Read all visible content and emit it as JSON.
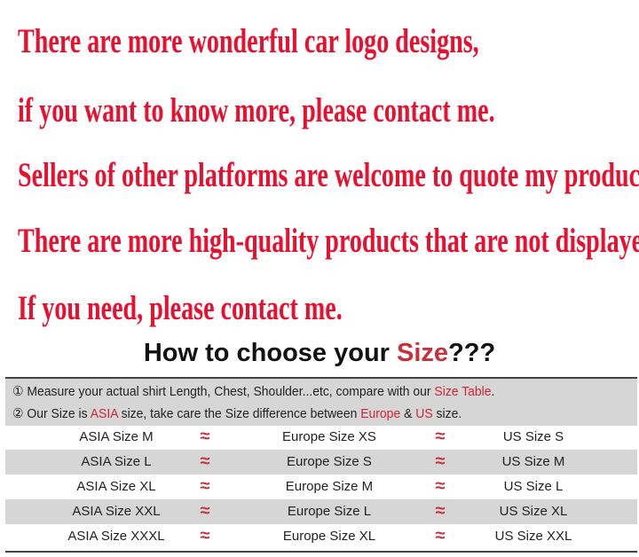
{
  "promo_lines": [
    "There are more wonderful car logo designs,",
    "if you want to know more, please contact me.",
    "Sellers of other platforms are welcome to quote my products.",
    "There are more high-quality products that are not displayed.",
    "If you need, please contact me."
  ],
  "size_guide": {
    "title_prefix": "How to choose your ",
    "title_highlight": "Size",
    "title_suffix": "???",
    "note1": {
      "marker": "①",
      "text": " Measure your actual shirt Length, Chest, Shoulder...etc, compare with our ",
      "highlight": "Size Table",
      "end": "."
    },
    "note2": {
      "marker": "②",
      "t1": " Our Size is ",
      "h1": "ASIA",
      "t2": " size, take care the Size difference between ",
      "h2": "Europe",
      "t3": " & ",
      "h3": "US",
      "t4": " size."
    },
    "approx_symbol": "≈",
    "rows": [
      {
        "asia": "ASIA Size M",
        "europe": "Europe Size XS",
        "us": "US Size S"
      },
      {
        "asia": "ASIA Size L",
        "europe": "Europe Size S",
        "us": "US Size M"
      },
      {
        "asia": "ASIA Size XL",
        "europe": "Europe Size M",
        "us": "US Size L"
      },
      {
        "asia": "ASIA Size XXL",
        "europe": "Europe Size L",
        "us": "US Size XL"
      },
      {
        "asia": "ASIA Size XXXL",
        "europe": "Europe Size XL",
        "us": "US Size XXL"
      }
    ],
    "highlight_color": "#d0243a"
  }
}
